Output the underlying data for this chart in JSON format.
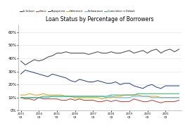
{
  "title": "Loan Status by Percentage of Borrowers",
  "legend": [
    "In-School",
    "Grace",
    "Repayment",
    "Deferment",
    "Forbearance",
    "Cumulative in Default"
  ],
  "colors": {
    "In-School": "#1f3c88",
    "Grace": "#c0392b",
    "Repayment": "#404040",
    "Deferment": "#d4a800",
    "Forbearance": "#5dade2",
    "Cumulative in Default": "#27ae60"
  },
  "ylim": [
    0,
    0.66
  ],
  "yticks": [
    0.0,
    0.1,
    0.2,
    0.3,
    0.4,
    0.5,
    0.6
  ],
  "ytick_labels": [
    "0%",
    "10%",
    "20%",
    "30%",
    "40%",
    "50%",
    "60%"
  ],
  "In-School": [
    0.28,
    0.31,
    0.3,
    0.29,
    0.28,
    0.27,
    0.26,
    0.28,
    0.27,
    0.26,
    0.25,
    0.23,
    0.22,
    0.24,
    0.23,
    0.22,
    0.22,
    0.23,
    0.22,
    0.21,
    0.21,
    0.22,
    0.2,
    0.21,
    0.21,
    0.19,
    0.18,
    0.17,
    0.19,
    0.2,
    0.18,
    0.17,
    0.19,
    0.19,
    0.19,
    0.19
  ],
  "Grace": [
    0.1,
    0.09,
    0.09,
    0.08,
    0.1,
    0.09,
    0.09,
    0.09,
    0.09,
    0.08,
    0.08,
    0.09,
    0.08,
    0.09,
    0.08,
    0.08,
    0.08,
    0.07,
    0.07,
    0.08,
    0.07,
    0.08,
    0.07,
    0.07,
    0.07,
    0.09,
    0.08,
    0.07,
    0.07,
    0.08,
    0.07,
    0.06,
    0.07,
    0.07,
    0.07,
    0.08
  ],
  "Repayment": [
    0.38,
    0.35,
    0.37,
    0.39,
    0.38,
    0.39,
    0.41,
    0.42,
    0.44,
    0.44,
    0.45,
    0.44,
    0.44,
    0.44,
    0.44,
    0.43,
    0.44,
    0.45,
    0.44,
    0.44,
    0.45,
    0.44,
    0.44,
    0.45,
    0.46,
    0.44,
    0.45,
    0.46,
    0.44,
    0.46,
    0.47,
    0.44,
    0.46,
    0.47,
    0.45,
    0.47
  ],
  "Deferment": [
    0.12,
    0.12,
    0.13,
    0.12,
    0.12,
    0.13,
    0.12,
    0.12,
    0.12,
    0.12,
    0.11,
    0.11,
    0.1,
    0.1,
    0.1,
    0.1,
    0.1,
    0.1,
    0.09,
    0.1,
    0.1,
    0.11,
    0.11,
    0.12,
    0.12,
    0.12,
    0.12,
    0.11,
    0.11,
    0.11,
    0.11,
    0.1,
    0.1,
    0.1,
    0.1,
    0.1
  ],
  "Forbearance": [
    0.1,
    0.1,
    0.1,
    0.1,
    0.1,
    0.1,
    0.1,
    0.11,
    0.11,
    0.11,
    0.11,
    0.11,
    0.11,
    0.11,
    0.11,
    0.11,
    0.11,
    0.11,
    0.11,
    0.1,
    0.11,
    0.1,
    0.1,
    0.1,
    0.1,
    0.11,
    0.11,
    0.11,
    0.11,
    0.1,
    0.1,
    0.1,
    0.1,
    0.1,
    0.1,
    0.1
  ],
  "Cumulative in Default": [
    0.1,
    0.1,
    0.1,
    0.1,
    0.1,
    0.11,
    0.11,
    0.11,
    0.11,
    0.11,
    0.11,
    0.11,
    0.11,
    0.11,
    0.11,
    0.11,
    0.11,
    0.11,
    0.11,
    0.11,
    0.12,
    0.12,
    0.12,
    0.12,
    0.12,
    0.12,
    0.13,
    0.13,
    0.13,
    0.13,
    0.13,
    0.13,
    0.13,
    0.13,
    0.13,
    0.13
  ],
  "x_tick_every": 4,
  "n_points": 36,
  "start_year": 2013,
  "background_color": "#ffffff",
  "grid_color": "#dddddd",
  "spine_color": "#aaaaaa"
}
